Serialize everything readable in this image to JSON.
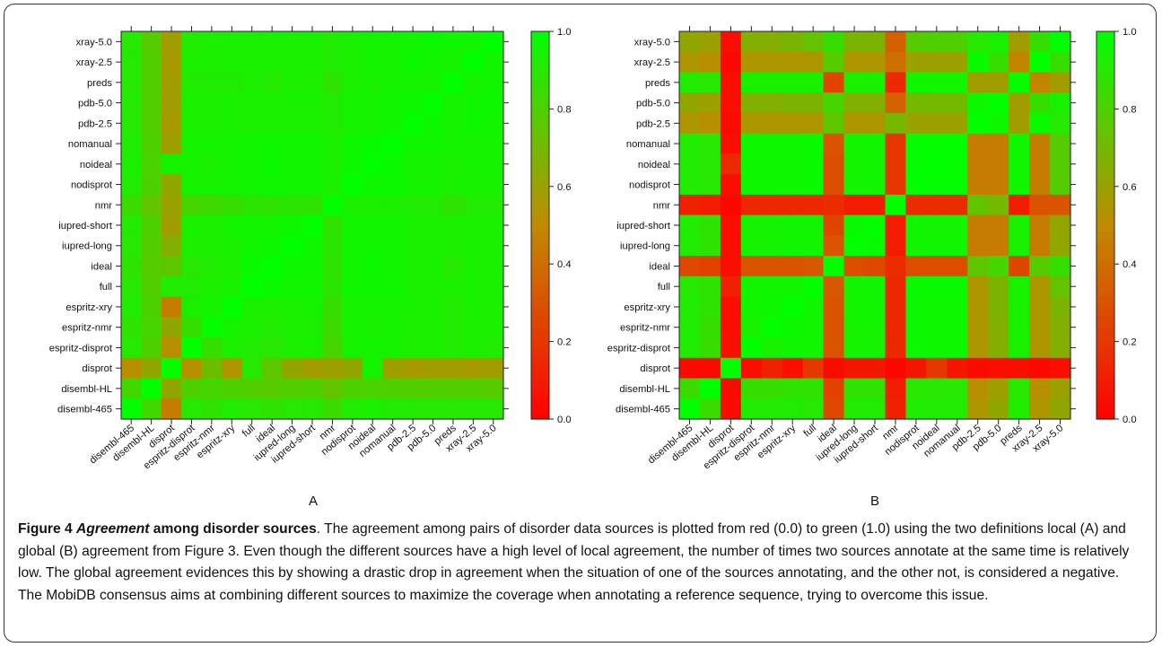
{
  "figure": {
    "caption": {
      "label": "Figure 4",
      "title_italic": "Agreement",
      "title_rest": " among disorder sources",
      "body": ". The agreement among pairs of disorder data sources is plotted from red (0.0) to green (1.0) using the two definitions local (A) and global (B) agreement from Figure 3. Even though the different sources have a high level of local agreement, the number of times two sources annotate at the same time is relatively low. The global agreement evidences this by showing a drastic drop in agreement when the situation of one of the sources annotating, and the other not, is considered a negative. The MobiDB consensus aims at combining different sources to maximize the coverage when annotating a reference sequence, trying to overcome this issue."
    }
  },
  "colors": {
    "low": "#ff0000",
    "mid": "#c08a00",
    "high": "#00ff00"
  },
  "chart_data": [
    {
      "type": "heatmap",
      "panel_label": "A",
      "x_categories": [
        "disembl-465",
        "disembl-HL",
        "disprot",
        "espritz-disprot",
        "espritz-nmr",
        "espritz-xry",
        "full",
        "ideal",
        "iupred-long",
        "iupred-short",
        "nmr",
        "nodisprot",
        "noideal",
        "nomanual",
        "pdb-2.5",
        "pdb-5.0",
        "preds",
        "xray-2.5",
        "xray-5.0"
      ],
      "y_categories_top_to_bottom": [
        "xray-5.0",
        "xray-2.5",
        "preds",
        "pdb-5.0",
        "pdb-2.5",
        "nomanual",
        "noideal",
        "nodisprot",
        "nmr",
        "iupred-short",
        "iupred-long",
        "ideal",
        "full",
        "espritz-xry",
        "espritz-nmr",
        "espritz-disprot",
        "disprot",
        "disembl-HL",
        "disembl-465"
      ],
      "values": [
        [
          0.9,
          0.78,
          0.58,
          0.92,
          0.93,
          0.93,
          0.94,
          0.94,
          0.94,
          0.94,
          0.92,
          0.94,
          0.95,
          0.95,
          0.96,
          0.97,
          0.96,
          0.96,
          1.0
        ],
        [
          0.91,
          0.79,
          0.57,
          0.93,
          0.93,
          0.94,
          0.94,
          0.94,
          0.94,
          0.94,
          0.92,
          0.94,
          0.95,
          0.95,
          0.97,
          0.96,
          0.95,
          1.0,
          0.96
        ],
        [
          0.9,
          0.79,
          0.58,
          0.92,
          0.92,
          0.92,
          0.93,
          0.91,
          0.93,
          0.93,
          0.88,
          0.94,
          0.94,
          0.95,
          0.95,
          0.95,
          1.0,
          0.95,
          0.96
        ],
        [
          0.91,
          0.79,
          0.58,
          0.93,
          0.93,
          0.94,
          0.94,
          0.94,
          0.94,
          0.94,
          0.92,
          0.95,
          0.95,
          0.96,
          0.97,
          1.0,
          0.95,
          0.96,
          0.97
        ],
        [
          0.91,
          0.79,
          0.57,
          0.93,
          0.93,
          0.94,
          0.94,
          0.94,
          0.94,
          0.94,
          0.92,
          0.95,
          0.95,
          0.96,
          1.0,
          0.97,
          0.95,
          0.97,
          0.96
        ],
        [
          0.92,
          0.8,
          0.59,
          0.95,
          0.95,
          0.95,
          0.96,
          0.96,
          0.96,
          0.96,
          0.93,
          0.97,
          0.98,
          1.0,
          0.96,
          0.96,
          0.95,
          0.95,
          0.95
        ],
        [
          0.93,
          0.81,
          0.95,
          0.95,
          0.94,
          0.95,
          0.96,
          0.97,
          0.96,
          0.96,
          0.93,
          0.97,
          1.0,
          0.98,
          0.95,
          0.95,
          0.94,
          0.95,
          0.95
        ],
        [
          0.92,
          0.8,
          0.62,
          0.95,
          0.95,
          0.95,
          0.96,
          0.96,
          0.96,
          0.96,
          0.93,
          1.0,
          0.97,
          0.97,
          0.95,
          0.95,
          0.94,
          0.94,
          0.94
        ],
        [
          0.85,
          0.75,
          0.6,
          0.82,
          0.84,
          0.86,
          0.89,
          0.88,
          0.89,
          0.88,
          1.0,
          0.93,
          0.93,
          0.93,
          0.92,
          0.92,
          0.88,
          0.92,
          0.92
        ],
        [
          0.91,
          0.8,
          0.58,
          0.94,
          0.93,
          0.95,
          0.96,
          0.96,
          0.97,
          1.0,
          0.88,
          0.96,
          0.96,
          0.96,
          0.94,
          0.94,
          0.93,
          0.94,
          0.94
        ],
        [
          0.9,
          0.79,
          0.66,
          0.93,
          0.93,
          0.94,
          0.96,
          0.97,
          1.0,
          0.97,
          0.89,
          0.96,
          0.96,
          0.96,
          0.94,
          0.94,
          0.93,
          0.94,
          0.94
        ],
        [
          0.88,
          0.78,
          0.76,
          0.9,
          0.92,
          0.93,
          0.98,
          1.0,
          0.97,
          0.96,
          0.88,
          0.96,
          0.97,
          0.96,
          0.94,
          0.94,
          0.91,
          0.94,
          0.94
        ],
        [
          0.9,
          0.79,
          0.92,
          0.92,
          0.93,
          0.94,
          1.0,
          0.98,
          0.96,
          0.96,
          0.89,
          0.96,
          0.96,
          0.96,
          0.94,
          0.94,
          0.93,
          0.94,
          0.94
        ],
        [
          0.92,
          0.8,
          0.45,
          0.93,
          0.95,
          1.0,
          0.94,
          0.93,
          0.94,
          0.95,
          0.86,
          0.95,
          0.95,
          0.95,
          0.94,
          0.94,
          0.92,
          0.94,
          0.93
        ],
        [
          0.88,
          0.82,
          0.62,
          0.86,
          1.0,
          0.95,
          0.93,
          0.92,
          0.93,
          0.93,
          0.84,
          0.95,
          0.94,
          0.95,
          0.93,
          0.93,
          0.92,
          0.93,
          0.93
        ],
        [
          0.91,
          0.8,
          0.52,
          1.0,
          0.86,
          0.93,
          0.92,
          0.9,
          0.93,
          0.94,
          0.82,
          0.95,
          0.95,
          0.95,
          0.93,
          0.93,
          0.92,
          0.93,
          0.92
        ],
        [
          0.52,
          0.62,
          1.0,
          0.52,
          0.72,
          0.55,
          0.9,
          0.76,
          0.62,
          0.58,
          0.59,
          0.62,
          0.95,
          0.59,
          0.57,
          0.58,
          0.58,
          0.57,
          0.58
        ],
        [
          0.83,
          1.0,
          0.62,
          0.8,
          0.82,
          0.8,
          0.79,
          0.78,
          0.79,
          0.8,
          0.75,
          0.8,
          0.81,
          0.8,
          0.79,
          0.79,
          0.79,
          0.79,
          0.78
        ],
        [
          1.0,
          0.83,
          0.45,
          0.91,
          0.88,
          0.92,
          0.9,
          0.88,
          0.9,
          0.91,
          0.85,
          0.92,
          0.93,
          0.92,
          0.91,
          0.91,
          0.9,
          0.91,
          0.9
        ]
      ],
      "zlim": [
        0.0,
        1.0
      ],
      "colorbar_ticks": [
        "0.0",
        "0.2",
        "0.4",
        "0.6",
        "0.8",
        "1.0"
      ]
    },
    {
      "type": "heatmap",
      "panel_label": "B",
      "x_categories": [
        "disembl-465",
        "disembl-HL",
        "disprot",
        "espritz-disprot",
        "espritz-nmr",
        "espritz-xry",
        "full",
        "ideal",
        "iupred-long",
        "iupred-short",
        "nmr",
        "nodisprot",
        "noideal",
        "nomanual",
        "pdb-2.5",
        "pdb-5.0",
        "preds",
        "xray-2.5",
        "xray-5.0"
      ],
      "y_categories_top_to_bottom": [
        "xray-5.0",
        "xray-2.5",
        "preds",
        "pdb-5.0",
        "pdb-2.5",
        "nomanual",
        "noideal",
        "nodisprot",
        "nmr",
        "iupred-short",
        "iupred-long",
        "ideal",
        "full",
        "espritz-xry",
        "espritz-nmr",
        "espritz-disprot",
        "disprot",
        "disembl-HL",
        "disembl-465"
      ],
      "values": [
        [
          0.62,
          0.6,
          0.05,
          0.66,
          0.66,
          0.68,
          0.74,
          0.86,
          0.68,
          0.68,
          0.35,
          0.78,
          0.8,
          0.8,
          0.9,
          0.94,
          0.58,
          0.86,
          1.0
        ],
        [
          0.55,
          0.52,
          0.03,
          0.55,
          0.55,
          0.55,
          0.55,
          0.78,
          0.55,
          0.55,
          0.4,
          0.6,
          0.6,
          0.6,
          0.98,
          0.86,
          0.48,
          1.0,
          0.86
        ],
        [
          0.92,
          0.9,
          0.05,
          0.94,
          0.94,
          0.94,
          0.94,
          0.25,
          0.94,
          0.94,
          0.15,
          0.96,
          0.96,
          0.96,
          0.58,
          0.58,
          1.0,
          0.48,
          0.58
        ],
        [
          0.62,
          0.6,
          0.05,
          0.66,
          0.66,
          0.68,
          0.68,
          0.82,
          0.66,
          0.66,
          0.36,
          0.7,
          0.7,
          0.7,
          0.97,
          1.0,
          0.58,
          0.86,
          0.94
        ],
        [
          0.55,
          0.52,
          0.04,
          0.55,
          0.55,
          0.55,
          0.55,
          0.76,
          0.55,
          0.55,
          0.7,
          0.6,
          0.6,
          0.6,
          1.0,
          0.97,
          0.58,
          0.98,
          0.9
        ],
        [
          0.92,
          0.9,
          0.05,
          0.97,
          0.97,
          0.97,
          0.98,
          0.3,
          0.96,
          0.96,
          0.2,
          0.99,
          0.99,
          1.0,
          0.45,
          0.45,
          0.96,
          0.45,
          0.78
        ],
        [
          0.92,
          0.9,
          0.15,
          0.97,
          0.97,
          0.97,
          0.98,
          0.28,
          0.96,
          0.96,
          0.2,
          0.99,
          1.0,
          0.99,
          0.45,
          0.45,
          0.96,
          0.45,
          0.78
        ],
        [
          0.92,
          0.9,
          0.05,
          0.97,
          0.97,
          0.97,
          0.98,
          0.28,
          0.96,
          0.96,
          0.2,
          1.0,
          0.99,
          0.99,
          0.45,
          0.45,
          0.96,
          0.45,
          0.78
        ],
        [
          0.12,
          0.1,
          0.02,
          0.14,
          0.14,
          0.14,
          0.14,
          0.16,
          0.1,
          0.1,
          1.0,
          0.16,
          0.16,
          0.16,
          0.75,
          0.7,
          0.1,
          0.3,
          0.3
        ],
        [
          0.92,
          0.88,
          0.05,
          0.95,
          0.95,
          0.96,
          0.96,
          0.25,
          0.98,
          1.0,
          0.1,
          0.96,
          0.96,
          0.96,
          0.45,
          0.45,
          0.94,
          0.45,
          0.62
        ],
        [
          0.92,
          0.88,
          0.05,
          0.95,
          0.95,
          0.96,
          0.96,
          0.3,
          1.0,
          0.98,
          0.1,
          0.96,
          0.96,
          0.96,
          0.45,
          0.45,
          0.94,
          0.45,
          0.62
        ],
        [
          0.26,
          0.24,
          0.05,
          0.3,
          0.3,
          0.3,
          0.32,
          1.0,
          0.28,
          0.26,
          0.16,
          0.28,
          0.28,
          0.28,
          0.76,
          0.82,
          0.25,
          0.78,
          0.86
        ],
        [
          0.9,
          0.88,
          0.12,
          0.96,
          0.96,
          0.96,
          1.0,
          0.32,
          0.96,
          0.96,
          0.14,
          0.98,
          0.98,
          0.98,
          0.55,
          0.68,
          0.94,
          0.55,
          0.74
        ],
        [
          0.92,
          0.88,
          0.05,
          0.96,
          0.97,
          1.0,
          0.96,
          0.3,
          0.96,
          0.96,
          0.14,
          0.97,
          0.97,
          0.97,
          0.55,
          0.68,
          0.94,
          0.55,
          0.68
        ],
        [
          0.92,
          0.86,
          0.05,
          0.94,
          1.0,
          0.97,
          0.96,
          0.3,
          0.95,
          0.95,
          0.14,
          0.97,
          0.97,
          0.97,
          0.55,
          0.66,
          0.94,
          0.55,
          0.66
        ],
        [
          0.92,
          0.86,
          0.05,
          1.0,
          0.94,
          0.96,
          0.96,
          0.3,
          0.95,
          0.95,
          0.14,
          0.97,
          0.97,
          0.97,
          0.55,
          0.66,
          0.94,
          0.55,
          0.66
        ],
        [
          0.04,
          0.04,
          1.0,
          0.05,
          0.12,
          0.05,
          0.2,
          0.04,
          0.08,
          0.08,
          0.02,
          0.08,
          0.2,
          0.08,
          0.04,
          0.05,
          0.05,
          0.03,
          0.05
        ],
        [
          0.85,
          1.0,
          0.04,
          0.86,
          0.86,
          0.88,
          0.88,
          0.24,
          0.88,
          0.88,
          0.1,
          0.9,
          0.9,
          0.9,
          0.52,
          0.6,
          0.9,
          0.52,
          0.6
        ],
        [
          1.0,
          0.85,
          0.04,
          0.92,
          0.92,
          0.92,
          0.9,
          0.26,
          0.92,
          0.92,
          0.12,
          0.92,
          0.92,
          0.92,
          0.55,
          0.62,
          0.92,
          0.55,
          0.62
        ]
      ],
      "zlim": [
        0.0,
        1.0
      ],
      "colorbar_ticks": [
        "0.0",
        "0.2",
        "0.4",
        "0.6",
        "0.8",
        "1.0"
      ]
    }
  ]
}
